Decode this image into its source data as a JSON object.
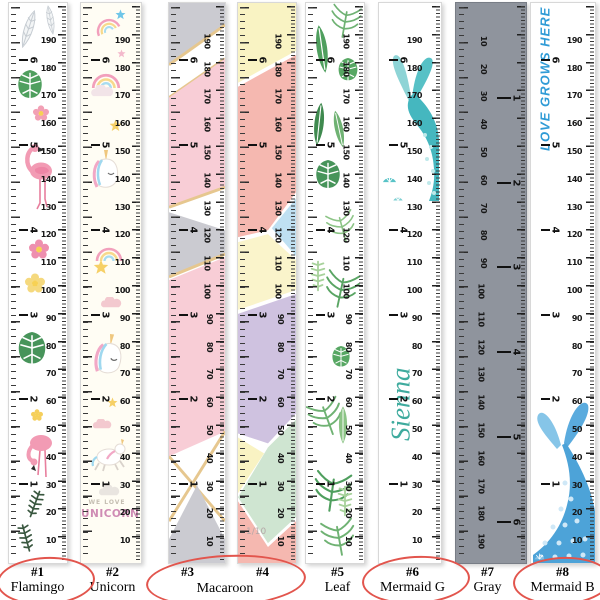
{
  "colors": {
    "accent_red": "#e2554d",
    "gray_ruler": "#8f949d",
    "macaroon_pink": "#f8cdd6",
    "macaroon_gold": "#e6c78f",
    "mermaid_teal": "#45b7bf",
    "mermaid_blue": "#4da3d8",
    "tick_black": "#2c2c2c"
  },
  "scale": {
    "unit_cm_step": 10,
    "cm_values": [
      190,
      180,
      170,
      160,
      150,
      140,
      130,
      120,
      110,
      100,
      90,
      80,
      70,
      60,
      50,
      40,
      30,
      20,
      10
    ],
    "feet_marks": [
      {
        "ft": 1,
        "cm": 30.5
      },
      {
        "ft": 2,
        "cm": 61
      },
      {
        "ft": 3,
        "cm": 91.5
      },
      {
        "ft": 4,
        "cm": 122
      },
      {
        "ft": 5,
        "cm": 152.5
      },
      {
        "ft": 6,
        "cm": 183
      }
    ]
  },
  "rulers": [
    {
      "tag": "#1",
      "title": "Flamingo",
      "cm_direction": "descending",
      "decorations": [
        "feather-icon",
        "feather-icon",
        "monstera-leaf-icon",
        "pink-flower-icon",
        "flamingo-icon",
        "hibiscus-flower-icon",
        "plumeria-flower-icon",
        "monstera-leaf-icon",
        "yellow-flower-icon",
        "flamingo-feeding-icon",
        "fern-icon",
        "fern-icon"
      ]
    },
    {
      "tag": "#2",
      "title": "Unicorn",
      "cm_direction": "descending",
      "texts": {
        "we_love": "WE LOVE",
        "unicorn": "UNICORN"
      },
      "decorations": [
        "shooting-star-icon",
        "pink-star-icon",
        "rainbow-icon",
        "cloud-icon",
        "yellow-star-icon",
        "unicorn-head-icon",
        "rainbow-icon",
        "star-icon",
        "pink-cloud-icon",
        "unicorn-head-icon",
        "yellow-star-icon",
        "pink-cloud-icon",
        "unicorn-jumping-icon",
        "cloud-icon"
      ]
    },
    {
      "tag": "#3",
      "title": "Macaroon",
      "cm_direction": "descending",
      "palette": [
        "#cbcbd1",
        "#f8cdd6",
        "#e6c78f",
        "#ffffff"
      ]
    },
    {
      "tag": "#4",
      "title": "Macaroon",
      "cm_direction": "descending",
      "watermark": "1/10",
      "palette": [
        "#f9f3c3",
        "#f5b8b0",
        "#bfe0f2",
        "#faf4cb",
        "#cfc2e0",
        "#cfe5d1"
      ]
    },
    {
      "tag": "#5",
      "title": "Leaf",
      "cm_direction": "descending",
      "decorations": [
        "palm-leaf-icon",
        "banana-leaf-icon",
        "monstera-leaf-icon",
        "fern-leaf-icon"
      ]
    },
    {
      "tag": "#6",
      "title": "Mermaid G",
      "cm_direction": "descending",
      "texts": {
        "name": "Sienna"
      },
      "decorations": [
        "mermaid-tail-icon",
        "shell-icon",
        "shell-icon"
      ]
    },
    {
      "tag": "#7",
      "title": "Gray",
      "cm_direction": "ascending",
      "decorations": []
    },
    {
      "tag": "#8",
      "title": "Mermaid B",
      "cm_direction": "descending",
      "texts": {
        "motto": "LOVE GROWS HERE"
      },
      "decorations": [
        "mermaid-tail-icon",
        "shell-icon"
      ]
    }
  ],
  "footer": {
    "items": [
      {
        "tag": "#1",
        "name": "Flamingo",
        "circled": true
      },
      {
        "tag": "#2",
        "name": "Unicorn",
        "circled": false
      },
      {
        "tag": "#3",
        "name": "",
        "circled": true
      },
      {
        "tag": "#4",
        "name": "",
        "circled": true
      },
      {
        "tag": "#5",
        "name": "Leaf",
        "circled": false
      },
      {
        "tag": "#6",
        "name": "Mermaid G",
        "circled": true
      },
      {
        "tag": "#7",
        "name": "Gray",
        "circled": false
      },
      {
        "tag": "#8",
        "name": "Mermaid B",
        "circled": true
      }
    ],
    "macaroon_label": "Macaroon"
  }
}
